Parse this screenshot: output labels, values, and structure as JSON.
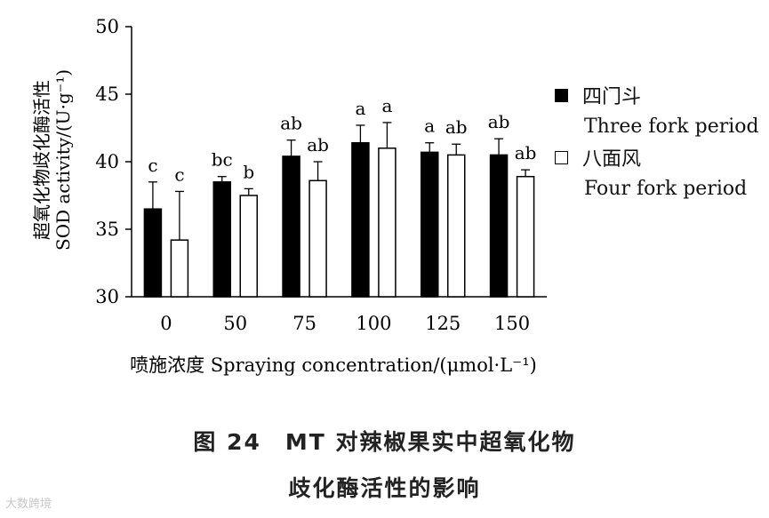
{
  "chart_data": {
    "type": "bar",
    "categories": [
      "0",
      "50",
      "75",
      "100",
      "125",
      "150"
    ],
    "series": [
      {
        "name": "四门斗",
        "name_en": "Three fork period",
        "color": "#000000",
        "values": [
          36.5,
          38.5,
          40.4,
          41.4,
          40.7,
          40.5
        ],
        "errors": [
          2.0,
          0.4,
          1.2,
          1.3,
          0.7,
          1.2
        ],
        "letters": [
          "c",
          "bc",
          "ab",
          "a",
          "a",
          "ab"
        ]
      },
      {
        "name": "八面风",
        "name_en": "Four fork period",
        "color": "#ffffff",
        "values": [
          34.2,
          37.5,
          38.6,
          41.0,
          40.5,
          38.9
        ],
        "errors": [
          3.6,
          0.5,
          1.4,
          1.9,
          0.8,
          0.5
        ],
        "letters": [
          "c",
          "b",
          "ab",
          "a",
          "ab",
          "ab"
        ]
      }
    ],
    "ylim": [
      30,
      50
    ],
    "yticks": [
      "30",
      "35",
      "40",
      "45",
      "50"
    ],
    "ylabel_cn": "超氧化物歧化酶活性",
    "ylabel_en": "SOD activity/(U·g⁻¹)",
    "xlabel": "喷施浓度 Spraying concentration/(μmol·L⁻¹)",
    "legend_position": "right"
  },
  "caption": {
    "line1": "图 24　MT 对辣椒果实中超氧化物",
    "line2": "歧化酶活性的影响"
  },
  "watermark": "大数跨境"
}
